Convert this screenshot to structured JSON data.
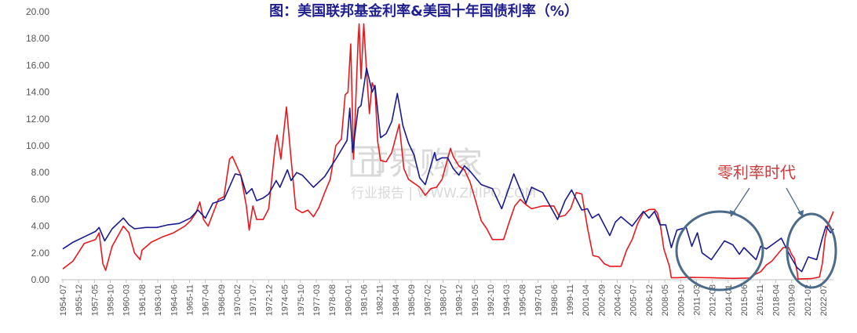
{
  "chart_data": {
    "type": "line",
    "title": "图：美国联邦基金利率&美国十年国债利率（%）",
    "xlabel": "",
    "ylabel": "",
    "ylim": [
      0,
      20
    ],
    "yticks": [
      "0.00",
      "2.00",
      "4.00",
      "6.00",
      "8.00",
      "10.00",
      "12.00",
      "14.00",
      "16.00",
      "18.00",
      "20.00"
    ],
    "xlim": [
      "1954-07",
      "2023-06"
    ],
    "xticks": [
      "1954-07",
      "1955-12",
      "1957-05",
      "1958-10",
      "1960-03",
      "1961-08",
      "1963-01",
      "1964-06",
      "1965-11",
      "1967-04",
      "1968-09",
      "1970-02",
      "1971-07",
      "1972-12",
      "1974-05",
      "1975-10",
      "1977-03",
      "1978-08",
      "1980-01",
      "1981-06",
      "1982-11",
      "1984-04",
      "1985-09",
      "1987-02",
      "1988-07",
      "1989-12",
      "1991-05",
      "1992-10",
      "1994-03",
      "1995-08",
      "1997-01",
      "1998-06",
      "1999-11",
      "2001-04",
      "2002-09",
      "2004-02",
      "2005-07",
      "2006-12",
      "2008-05",
      "2009-10",
      "2011-03",
      "2012-08",
      "2014-01",
      "2015-06",
      "2016-11",
      "2018-04",
      "2019-09",
      "2021-02",
      "2022-07"
    ],
    "grid": false,
    "legend": "none",
    "colors": {
      "fed_funds": "#e8191e",
      "treasury_10y": "#1a1a8c",
      "circle": "#4a6b8a"
    },
    "series": [
      {
        "key": "fed_funds",
        "x": [
          "1954-07",
          "1955-06",
          "1956-06",
          "1957-06",
          "1957-10",
          "1958-02",
          "1958-05",
          "1958-12",
          "1959-12",
          "1960-06",
          "1960-12",
          "1961-06",
          "1961-08",
          "1962-06",
          "1963-06",
          "1964-06",
          "1965-06",
          "1965-12",
          "1966-06",
          "1966-10",
          "1967-02",
          "1967-07",
          "1968-06",
          "1968-12",
          "1969-06",
          "1969-09",
          "1970-06",
          "1970-12",
          "1971-03",
          "1971-07",
          "1971-11",
          "1972-06",
          "1972-12",
          "1973-07",
          "1973-09",
          "1974-01",
          "1974-07",
          "1974-12",
          "1975-05",
          "1975-12",
          "1976-06",
          "1976-12",
          "1977-06",
          "1977-12",
          "1978-06",
          "1978-12",
          "1979-06",
          "1979-10",
          "1980-01",
          "1980-04",
          "1980-07",
          "1980-12",
          "1981-01",
          "1981-03",
          "1981-06",
          "1981-09",
          "1981-12",
          "1982-03",
          "1982-06",
          "1982-09",
          "1982-12",
          "1983-06",
          "1983-12",
          "1984-08",
          "1985-01",
          "1985-06",
          "1986-06",
          "1986-12",
          "1987-06",
          "1987-12",
          "1988-06",
          "1989-03",
          "1989-06",
          "1989-12",
          "1990-06",
          "1990-12",
          "1991-06",
          "1991-12",
          "1992-06",
          "1992-12",
          "1993-06",
          "1993-12",
          "1994-06",
          "1994-12",
          "1995-06",
          "1995-12",
          "1996-06",
          "1997-06",
          "1998-06",
          "1998-12",
          "1999-06",
          "1999-12",
          "2000-06",
          "2000-12",
          "2001-06",
          "2001-12",
          "2002-06",
          "2002-12",
          "2003-06",
          "2003-12",
          "2004-06",
          "2004-12",
          "2005-06",
          "2005-12",
          "2006-06",
          "2006-12",
          "2007-06",
          "2007-09",
          "2007-12",
          "2008-04",
          "2008-10",
          "2008-12",
          "2009-06",
          "2010-06",
          "2012-06",
          "2014-06",
          "2015-12",
          "2016-06",
          "2016-12",
          "2017-06",
          "2017-12",
          "2018-06",
          "2018-12",
          "2019-06",
          "2019-09",
          "2019-12",
          "2020-03",
          "2020-04",
          "2021-06",
          "2022-03",
          "2022-06",
          "2022-09",
          "2022-12",
          "2023-06"
        ],
        "values": [
          0.8,
          1.4,
          2.7,
          3.0,
          3.5,
          1.2,
          0.7,
          2.5,
          4.0,
          3.5,
          2.0,
          1.5,
          2.2,
          2.8,
          3.2,
          3.5,
          4.0,
          4.4,
          5.0,
          5.8,
          4.5,
          4.0,
          6.0,
          6.2,
          9.0,
          9.2,
          7.8,
          5.5,
          3.7,
          5.5,
          4.5,
          4.5,
          5.3,
          10.0,
          10.8,
          9.0,
          12.9,
          9.0,
          5.3,
          5.0,
          5.2,
          4.7,
          5.4,
          6.5,
          7.5,
          10.0,
          10.5,
          13.8,
          14.0,
          17.6,
          9.0,
          18.0,
          19.1,
          15.0,
          19.1,
          15.5,
          12.4,
          14.7,
          14.2,
          10.3,
          8.9,
          8.8,
          9.5,
          11.6,
          8.3,
          7.5,
          6.9,
          6.3,
          6.8,
          6.9,
          7.5,
          9.8,
          9.2,
          8.5,
          8.2,
          7.3,
          5.9,
          4.4,
          3.8,
          3.0,
          3.0,
          3.0,
          4.3,
          5.5,
          6.0,
          5.6,
          5.3,
          5.5,
          5.5,
          4.7,
          4.8,
          5.3,
          6.5,
          6.4,
          3.9,
          1.8,
          1.7,
          1.2,
          1.0,
          1.0,
          1.0,
          2.2,
          3.0,
          4.2,
          5.0,
          5.24,
          5.25,
          5.0,
          4.2,
          2.3,
          1.0,
          0.15,
          0.15,
          0.18,
          0.15,
          0.1,
          0.13,
          0.4,
          0.6,
          1.1,
          1.4,
          1.9,
          2.4,
          2.4,
          1.9,
          1.6,
          0.6,
          0.05,
          0.08,
          0.2,
          1.2,
          3.1,
          4.1,
          5.1
        ]
      },
      {
        "key": "treasury_10y",
        "x": [
          "1954-07",
          "1955-06",
          "1956-06",
          "1957-06",
          "1957-10",
          "1958-04",
          "1958-12",
          "1959-12",
          "1960-06",
          "1960-12",
          "1961-12",
          "1962-12",
          "1963-12",
          "1964-12",
          "1965-12",
          "1966-08",
          "1967-04",
          "1967-12",
          "1968-12",
          "1969-12",
          "1970-06",
          "1970-12",
          "1971-06",
          "1971-11",
          "1972-06",
          "1972-12",
          "1973-08",
          "1973-12",
          "1974-08",
          "1974-12",
          "1975-06",
          "1975-12",
          "1976-12",
          "1977-12",
          "1978-12",
          "1979-12",
          "1980-03",
          "1980-06",
          "1980-12",
          "1981-03",
          "1981-09",
          "1982-03",
          "1982-06",
          "1982-12",
          "1983-06",
          "1983-12",
          "1984-06",
          "1984-12",
          "1985-06",
          "1985-12",
          "1986-06",
          "1986-12",
          "1987-10",
          "1987-12",
          "1988-06",
          "1988-12",
          "1989-06",
          "1989-12",
          "1990-06",
          "1990-12",
          "1991-12",
          "1992-12",
          "1993-10",
          "1994-11",
          "1995-12",
          "1996-06",
          "1997-06",
          "1998-10",
          "1999-06",
          "2000-01",
          "2000-12",
          "2001-06",
          "2001-11",
          "2002-06",
          "2003-06",
          "2003-12",
          "2004-06",
          "2005-06",
          "2006-06",
          "2006-12",
          "2007-06",
          "2007-12",
          "2008-06",
          "2008-12",
          "2009-06",
          "2010-04",
          "2010-10",
          "2011-04",
          "2011-09",
          "2012-07",
          "2013-09",
          "2014-06",
          "2015-01",
          "2015-06",
          "2016-07",
          "2016-12",
          "2017-06",
          "2018-10",
          "2019-06",
          "2019-09",
          "2020-03",
          "2020-08",
          "2021-03",
          "2021-12",
          "2022-06",
          "2022-10",
          "2023-03",
          "2023-06"
        ],
        "values": [
          2.3,
          2.8,
          3.2,
          3.6,
          3.9,
          2.9,
          3.8,
          4.6,
          4.1,
          3.8,
          3.9,
          3.9,
          4.1,
          4.2,
          4.6,
          5.2,
          4.6,
          5.7,
          6.0,
          7.9,
          7.8,
          6.4,
          6.8,
          5.9,
          6.1,
          6.4,
          7.4,
          6.9,
          8.2,
          7.4,
          8.0,
          7.8,
          6.9,
          7.7,
          9.0,
          10.4,
          12.8,
          9.5,
          12.8,
          13.0,
          15.8,
          14.0,
          14.5,
          10.6,
          10.9,
          11.8,
          13.9,
          11.5,
          10.2,
          9.3,
          7.6,
          7.1,
          9.5,
          8.9,
          9.1,
          9.1,
          8.3,
          7.8,
          8.5,
          8.1,
          7.1,
          6.8,
          5.3,
          7.9,
          5.7,
          6.9,
          6.5,
          4.5,
          5.9,
          6.7,
          5.2,
          5.3,
          4.6,
          4.9,
          3.3,
          4.3,
          4.7,
          4.0,
          5.1,
          4.6,
          5.1,
          4.1,
          4.1,
          2.4,
          3.7,
          3.9,
          2.5,
          3.5,
          2.0,
          1.5,
          2.9,
          2.6,
          1.9,
          2.4,
          1.5,
          2.5,
          2.3,
          3.1,
          2.0,
          1.6,
          0.9,
          0.6,
          1.7,
          1.5,
          3.1,
          4.0,
          3.5,
          3.8
        ]
      }
    ],
    "annotations": [
      {
        "text": "零利率时代",
        "color": "#cc3b3b"
      }
    ]
  },
  "watermark": {
    "main": "市界购家",
    "sub": "行业报告 | WWW.ZHIPO.COM"
  }
}
